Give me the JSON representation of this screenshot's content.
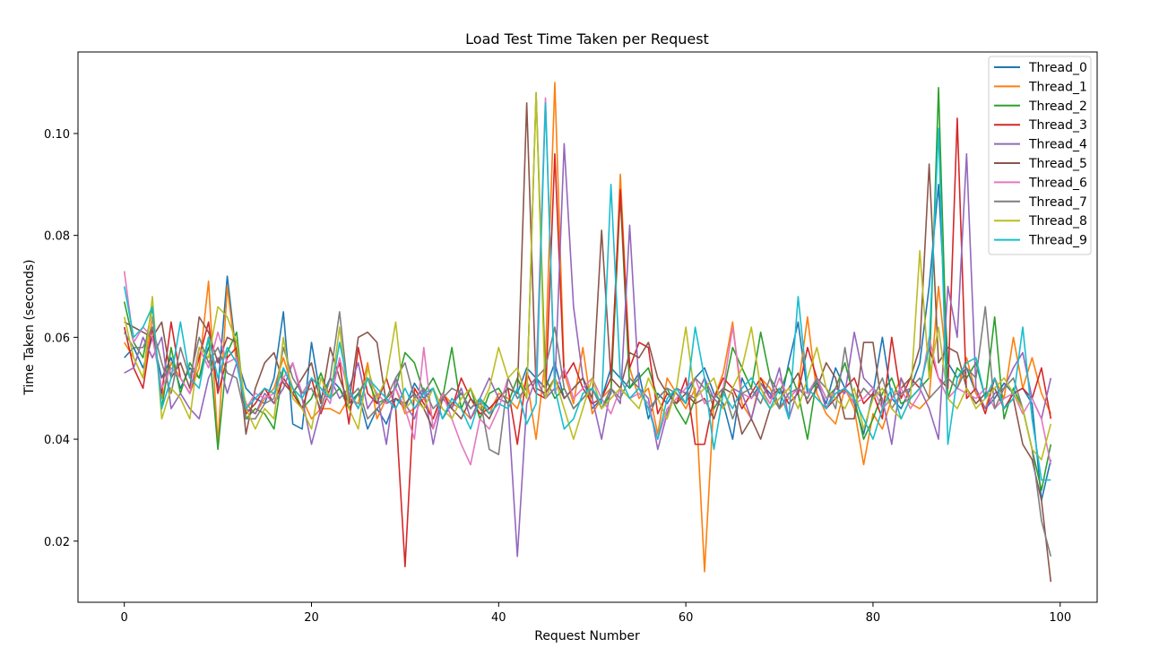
{
  "chart_data": {
    "type": "line",
    "title": "Load Test Time Taken per Request",
    "xlabel": "Request Number",
    "ylabel": "Time Taken (seconds)",
    "xlim": [
      -4.95,
      103.95
    ],
    "ylim": [
      0.008,
      0.116
    ],
    "xticks": [
      0,
      20,
      40,
      60,
      80,
      100
    ],
    "yticks": [
      0.02,
      0.04,
      0.06,
      0.08,
      0.1
    ],
    "xtick_labels": [
      "0",
      "20",
      "40",
      "60",
      "80",
      "100"
    ],
    "ytick_labels": [
      "0.02",
      "0.04",
      "0.06",
      "0.08",
      "0.10"
    ],
    "grid": false,
    "legend_position": "top-right",
    "x": [
      0,
      1,
      2,
      3,
      4,
      5,
      6,
      7,
      8,
      9,
      10,
      11,
      12,
      13,
      14,
      15,
      16,
      17,
      18,
      19,
      20,
      21,
      22,
      23,
      24,
      25,
      26,
      27,
      28,
      29,
      30,
      31,
      32,
      33,
      34,
      35,
      36,
      37,
      38,
      39,
      40,
      41,
      42,
      43,
      44,
      45,
      46,
      47,
      48,
      49,
      50,
      51,
      52,
      53,
      54,
      55,
      56,
      57,
      58,
      59,
      60,
      61,
      62,
      63,
      64,
      65,
      66,
      67,
      68,
      69,
      70,
      71,
      72,
      73,
      74,
      75,
      76,
      77,
      78,
      79,
      80,
      81,
      82,
      83,
      84,
      85,
      86,
      87,
      88,
      89,
      90,
      91,
      92,
      93,
      94,
      95,
      96,
      97,
      98,
      99
    ],
    "series": [
      {
        "name": "Thread_0",
        "color": "#1f77b4",
        "values": [
          0.056,
          0.058,
          0.054,
          0.06,
          0.052,
          0.056,
          0.05,
          0.054,
          0.052,
          0.058,
          0.05,
          0.072,
          0.056,
          0.05,
          0.048,
          0.047,
          0.052,
          0.065,
          0.043,
          0.042,
          0.059,
          0.048,
          0.052,
          0.05,
          0.047,
          0.049,
          0.042,
          0.046,
          0.043,
          0.048,
          0.046,
          0.051,
          0.048,
          0.05,
          0.044,
          0.047,
          0.049,
          0.046,
          0.048,
          0.046,
          0.048,
          0.05,
          0.049,
          0.054,
          0.052,
          0.05,
          0.055,
          0.048,
          0.05,
          0.052,
          0.046,
          0.048,
          0.054,
          0.052,
          0.05,
          0.053,
          0.044,
          0.049,
          0.047,
          0.05,
          0.049,
          0.052,
          0.054,
          0.049,
          0.047,
          0.04,
          0.052,
          0.048,
          0.051,
          0.049,
          0.046,
          0.055,
          0.063,
          0.049,
          0.051,
          0.047,
          0.054,
          0.05,
          0.047,
          0.041,
          0.049,
          0.06,
          0.048,
          0.046,
          0.05,
          0.055,
          0.07,
          0.09,
          0.055,
          0.052,
          0.054,
          0.049,
          0.046,
          0.048,
          0.051,
          0.049,
          0.05,
          0.047,
          0.028,
          0.036
        ]
      },
      {
        "name": "Thread_1",
        "color": "#ff7f0e",
        "values": [
          0.059,
          0.056,
          0.052,
          0.064,
          0.048,
          0.055,
          0.052,
          0.049,
          0.054,
          0.071,
          0.039,
          0.07,
          0.055,
          0.047,
          0.045,
          0.048,
          0.05,
          0.056,
          0.05,
          0.048,
          0.044,
          0.046,
          0.046,
          0.045,
          0.048,
          0.047,
          0.055,
          0.044,
          0.048,
          0.05,
          0.045,
          0.046,
          0.048,
          0.044,
          0.049,
          0.047,
          0.046,
          0.044,
          0.047,
          0.045,
          0.049,
          0.048,
          0.046,
          0.052,
          0.04,
          0.056,
          0.11,
          0.053,
          0.047,
          0.058,
          0.045,
          0.048,
          0.05,
          0.092,
          0.054,
          0.048,
          0.05,
          0.041,
          0.052,
          0.049,
          0.046,
          0.05,
          0.014,
          0.048,
          0.053,
          0.063,
          0.047,
          0.044,
          0.052,
          0.05,
          0.046,
          0.048,
          0.05,
          0.064,
          0.049,
          0.045,
          0.043,
          0.05,
          0.046,
          0.035,
          0.045,
          0.042,
          0.048,
          0.052,
          0.047,
          0.046,
          0.048,
          0.07,
          0.052,
          0.05,
          0.056,
          0.049,
          0.046,
          0.052,
          0.048,
          0.06,
          0.05,
          0.056,
          0.049,
          0.045
        ]
      },
      {
        "name": "Thread_2",
        "color": "#2ca02c",
        "values": [
          0.067,
          0.059,
          0.056,
          0.066,
          0.046,
          0.058,
          0.049,
          0.055,
          0.052,
          0.06,
          0.038,
          0.057,
          0.061,
          0.044,
          0.046,
          0.045,
          0.042,
          0.054,
          0.05,
          0.046,
          0.048,
          0.053,
          0.048,
          0.05,
          0.046,
          0.049,
          0.052,
          0.047,
          0.048,
          0.05,
          0.057,
          0.055,
          0.049,
          0.052,
          0.048,
          0.058,
          0.046,
          0.05,
          0.044,
          0.049,
          0.05,
          0.047,
          0.052,
          0.048,
          0.108,
          0.052,
          0.048,
          0.05,
          0.046,
          0.048,
          0.05,
          0.046,
          0.049,
          0.088,
          0.05,
          0.052,
          0.054,
          0.048,
          0.05,
          0.046,
          0.043,
          0.048,
          0.052,
          0.046,
          0.049,
          0.058,
          0.054,
          0.05,
          0.061,
          0.052,
          0.049,
          0.054,
          0.049,
          0.04,
          0.052,
          0.048,
          0.05,
          0.055,
          0.048,
          0.04,
          0.044,
          0.049,
          0.052,
          0.047,
          0.048,
          0.05,
          0.052,
          0.109,
          0.048,
          0.054,
          0.052,
          0.055,
          0.048,
          0.064,
          0.044,
          0.05,
          0.046,
          0.038,
          0.03,
          0.039
        ]
      },
      {
        "name": "Thread_3",
        "color": "#d62728",
        "values": [
          0.062,
          0.054,
          0.05,
          0.062,
          0.049,
          0.063,
          0.052,
          0.049,
          0.056,
          0.063,
          0.049,
          0.056,
          0.058,
          0.045,
          0.047,
          0.05,
          0.047,
          0.052,
          0.049,
          0.046,
          0.052,
          0.045,
          0.05,
          0.055,
          0.043,
          0.058,
          0.049,
          0.047,
          0.052,
          0.046,
          0.015,
          0.05,
          0.047,
          0.044,
          0.049,
          0.046,
          0.052,
          0.048,
          0.045,
          0.046,
          0.048,
          0.05,
          0.039,
          0.053,
          0.049,
          0.048,
          0.096,
          0.052,
          0.055,
          0.05,
          0.047,
          0.048,
          0.052,
          0.089,
          0.054,
          0.059,
          0.058,
          0.045,
          0.049,
          0.047,
          0.052,
          0.039,
          0.039,
          0.048,
          0.052,
          0.05,
          0.046,
          0.049,
          0.052,
          0.048,
          0.05,
          0.047,
          0.049,
          0.058,
          0.052,
          0.046,
          0.048,
          0.05,
          0.052,
          0.047,
          0.049,
          0.044,
          0.06,
          0.048,
          0.052,
          0.05,
          0.058,
          0.052,
          0.05,
          0.103,
          0.048,
          0.05,
          0.045,
          0.052,
          0.046,
          0.049,
          0.05,
          0.048,
          0.054,
          0.044
        ]
      },
      {
        "name": "Thread_4",
        "color": "#9467bd",
        "values": [
          0.053,
          0.054,
          0.06,
          0.056,
          0.06,
          0.046,
          0.049,
          0.046,
          0.044,
          0.052,
          0.056,
          0.049,
          0.055,
          0.046,
          0.045,
          0.049,
          0.047,
          0.05,
          0.055,
          0.048,
          0.039,
          0.046,
          0.052,
          0.048,
          0.05,
          0.055,
          0.046,
          0.049,
          0.039,
          0.052,
          0.047,
          0.044,
          0.05,
          0.039,
          0.048,
          0.046,
          0.05,
          0.044,
          0.048,
          0.052,
          0.048,
          0.047,
          0.017,
          0.047,
          0.052,
          0.048,
          0.05,
          0.098,
          0.066,
          0.052,
          0.048,
          0.04,
          0.05,
          0.047,
          0.082,
          0.05,
          0.048,
          0.038,
          0.045,
          0.05,
          0.049,
          0.048,
          0.052,
          0.048,
          0.046,
          0.05,
          0.049,
          0.044,
          0.051,
          0.048,
          0.054,
          0.044,
          0.05,
          0.048,
          0.052,
          0.046,
          0.05,
          0.049,
          0.061,
          0.052,
          0.05,
          0.048,
          0.039,
          0.052,
          0.048,
          0.05,
          0.046,
          0.04,
          0.07,
          0.06,
          0.096,
          0.05,
          0.046,
          0.049,
          0.05,
          0.054,
          0.057,
          0.048,
          0.044,
          0.052
        ]
      },
      {
        "name": "Thread_5",
        "color": "#8c564b",
        "values": [
          0.063,
          0.062,
          0.061,
          0.06,
          0.063,
          0.052,
          0.055,
          0.05,
          0.064,
          0.061,
          0.055,
          0.06,
          0.059,
          0.041,
          0.05,
          0.055,
          0.057,
          0.051,
          0.049,
          0.052,
          0.055,
          0.047,
          0.058,
          0.052,
          0.047,
          0.06,
          0.061,
          0.059,
          0.047,
          0.048,
          0.047,
          0.049,
          0.046,
          0.042,
          0.048,
          0.046,
          0.044,
          0.048,
          0.046,
          0.044,
          0.048,
          0.05,
          0.049,
          0.106,
          0.05,
          0.049,
          0.052,
          0.048,
          0.05,
          0.052,
          0.048,
          0.081,
          0.052,
          0.05,
          0.057,
          0.056,
          0.059,
          0.052,
          0.049,
          0.047,
          0.049,
          0.047,
          0.048,
          0.044,
          0.05,
          0.049,
          0.041,
          0.044,
          0.04,
          0.046,
          0.048,
          0.05,
          0.053,
          0.047,
          0.05,
          0.055,
          0.052,
          0.044,
          0.044,
          0.059,
          0.059,
          0.046,
          0.048,
          0.05,
          0.052,
          0.058,
          0.094,
          0.055,
          0.058,
          0.057,
          0.05,
          0.047,
          0.049,
          0.05,
          0.046,
          0.048,
          0.039,
          0.036,
          0.028,
          0.012
        ]
      },
      {
        "name": "Thread_6",
        "color": "#e377c2",
        "values": [
          0.073,
          0.059,
          0.062,
          0.06,
          0.05,
          0.054,
          0.052,
          0.049,
          0.058,
          0.054,
          0.061,
          0.055,
          0.056,
          0.046,
          0.049,
          0.048,
          0.049,
          0.052,
          0.055,
          0.049,
          0.052,
          0.05,
          0.047,
          0.056,
          0.049,
          0.046,
          0.052,
          0.049,
          0.047,
          0.05,
          0.046,
          0.04,
          0.058,
          0.042,
          0.049,
          0.044,
          0.039,
          0.035,
          0.044,
          0.042,
          0.046,
          0.052,
          0.048,
          0.05,
          0.052,
          0.107,
          0.049,
          0.054,
          0.048,
          0.05,
          0.052,
          0.048,
          0.045,
          0.05,
          0.048,
          0.049,
          0.047,
          0.04,
          0.046,
          0.048,
          0.05,
          0.052,
          0.047,
          0.048,
          0.05,
          0.062,
          0.049,
          0.048,
          0.05,
          0.047,
          0.052,
          0.048,
          0.05,
          0.049,
          0.052,
          0.048,
          0.049,
          0.05,
          0.047,
          0.048,
          0.05,
          0.046,
          0.048,
          0.05,
          0.046,
          0.049,
          0.06,
          0.052,
          0.048,
          0.05,
          0.049,
          0.048,
          0.05,
          0.046,
          0.048,
          0.049,
          0.045,
          0.048,
          0.044,
          0.035
        ]
      },
      {
        "name": "Thread_7",
        "color": "#7f7f7f",
        "values": [
          0.061,
          0.058,
          0.058,
          0.062,
          0.055,
          0.049,
          0.058,
          0.052,
          0.06,
          0.055,
          0.058,
          0.053,
          0.052,
          0.044,
          0.044,
          0.047,
          0.048,
          0.058,
          0.052,
          0.049,
          0.05,
          0.046,
          0.052,
          0.065,
          0.048,
          0.05,
          0.044,
          0.046,
          0.048,
          0.052,
          0.055,
          0.048,
          0.05,
          0.046,
          0.048,
          0.05,
          0.049,
          0.046,
          0.048,
          0.038,
          0.037,
          0.052,
          0.048,
          0.05,
          0.052,
          0.054,
          0.062,
          0.05,
          0.046,
          0.048,
          0.05,
          0.046,
          0.05,
          0.048,
          0.052,
          0.05,
          0.046,
          0.048,
          0.05,
          0.049,
          0.047,
          0.052,
          0.05,
          0.048,
          0.05,
          0.044,
          0.049,
          0.05,
          0.047,
          0.052,
          0.046,
          0.049,
          0.05,
          0.048,
          0.052,
          0.05,
          0.046,
          0.058,
          0.047,
          0.05,
          0.048,
          0.052,
          0.046,
          0.049,
          0.05,
          0.052,
          0.048,
          0.05,
          0.052,
          0.05,
          0.054,
          0.052,
          0.066,
          0.046,
          0.05,
          0.052,
          0.046,
          0.038,
          0.024,
          0.017
        ]
      },
      {
        "name": "Thread_8",
        "color": "#bcbd22",
        "values": [
          0.064,
          0.056,
          0.052,
          0.068,
          0.044,
          0.05,
          0.048,
          0.044,
          0.058,
          0.056,
          0.066,
          0.064,
          0.059,
          0.046,
          0.042,
          0.046,
          0.044,
          0.06,
          0.048,
          0.046,
          0.042,
          0.052,
          0.048,
          0.062,
          0.046,
          0.042,
          0.054,
          0.048,
          0.052,
          0.063,
          0.046,
          0.048,
          0.046,
          0.05,
          0.046,
          0.044,
          0.048,
          0.05,
          0.046,
          0.05,
          0.058,
          0.052,
          0.054,
          0.048,
          0.108,
          0.048,
          0.052,
          0.046,
          0.04,
          0.046,
          0.052,
          0.046,
          0.048,
          0.05,
          0.048,
          0.046,
          0.052,
          0.048,
          0.044,
          0.05,
          0.062,
          0.048,
          0.05,
          0.052,
          0.046,
          0.05,
          0.054,
          0.062,
          0.05,
          0.046,
          0.048,
          0.05,
          0.046,
          0.052,
          0.058,
          0.05,
          0.048,
          0.046,
          0.05,
          0.042,
          0.048,
          0.05,
          0.046,
          0.044,
          0.048,
          0.077,
          0.052,
          0.062,
          0.048,
          0.046,
          0.05,
          0.046,
          0.048,
          0.05,
          0.052,
          0.049,
          0.046,
          0.038,
          0.036,
          0.043
        ]
      },
      {
        "name": "Thread_9",
        "color": "#17becf",
        "values": [
          0.07,
          0.06,
          0.062,
          0.066,
          0.046,
          0.052,
          0.063,
          0.052,
          0.05,
          0.06,
          0.052,
          0.058,
          0.055,
          0.046,
          0.048,
          0.05,
          0.049,
          0.054,
          0.05,
          0.048,
          0.052,
          0.05,
          0.048,
          0.059,
          0.05,
          0.046,
          0.052,
          0.05,
          0.048,
          0.046,
          0.05,
          0.046,
          0.049,
          0.05,
          0.044,
          0.048,
          0.046,
          0.042,
          0.048,
          0.045,
          0.047,
          0.046,
          0.05,
          0.043,
          0.047,
          0.106,
          0.05,
          0.042,
          0.044,
          0.049,
          0.05,
          0.047,
          0.09,
          0.052,
          0.048,
          0.05,
          0.046,
          0.04,
          0.048,
          0.05,
          0.047,
          0.062,
          0.052,
          0.038,
          0.049,
          0.046,
          0.05,
          0.052,
          0.049,
          0.046,
          0.05,
          0.044,
          0.068,
          0.05,
          0.048,
          0.046,
          0.049,
          0.05,
          0.048,
          0.044,
          0.04,
          0.046,
          0.05,
          0.044,
          0.048,
          0.05,
          0.058,
          0.101,
          0.039,
          0.052,
          0.055,
          0.056,
          0.048,
          0.052,
          0.046,
          0.048,
          0.062,
          0.044,
          0.032,
          0.032
        ]
      }
    ]
  }
}
